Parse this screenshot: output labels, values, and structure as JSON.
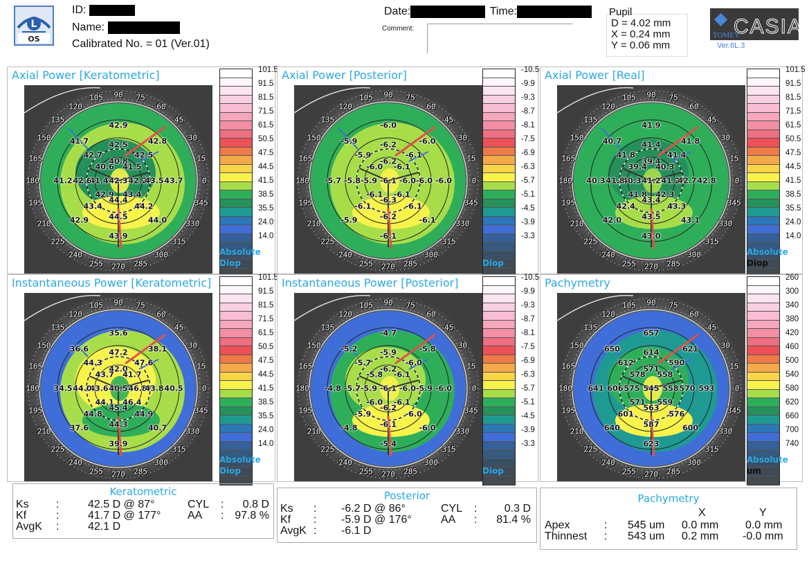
{
  "header": {
    "eye_badge": {
      "letter": "L",
      "label": "OS"
    },
    "id_label": "ID:",
    "name_label": "Name:",
    "calibration": "Calibrated No. = 01 (Ver.01)",
    "date_label": "Date:",
    "time_label": "Time:",
    "comment_label": "Comment:",
    "comment_value": "",
    "pupil": {
      "title": "Pupil",
      "d": "D = 4.02 mm",
      "x": "X = 0.24 mm",
      "y": "Y = 0.06 mm"
    },
    "brand": {
      "company": "TOMEY",
      "product": "CASIA",
      "version": "Ver.6L.3"
    }
  },
  "angle_labels": [
    "0",
    "15",
    "30",
    "45",
    "60",
    "75",
    "90",
    "105",
    "120",
    "135",
    "150",
    "165",
    "180",
    "195",
    "210",
    "225",
    "240",
    "255",
    "270",
    "285",
    "300",
    "315",
    "330",
    "345"
  ],
  "scales": {
    "diop_abs": {
      "ticks": [
        "101.5",
        "91.5",
        "81.5",
        "71.5",
        "61.5",
        "50.5",
        "47.5",
        "44.5",
        "41.5",
        "38.5",
        "35.5",
        "24.0",
        "14.0"
      ],
      "unit1": "Absolute",
      "unit2": "Diop"
    },
    "diop_post": {
      "ticks": [
        "-10.5",
        "-9.9",
        "-9.3",
        "-8.7",
        "-8.1",
        "-7.5",
        "-6.9",
        "-6.3",
        "-5.7",
        "-5.1",
        "-4.5",
        "-3.9",
        "-3.3"
      ],
      "unit1": "",
      "unit2": "Diop"
    },
    "pachy": {
      "ticks": [
        "260",
        "300",
        "340",
        "380",
        "420",
        "460",
        "500",
        "540",
        "580",
        "620",
        "660",
        "700",
        "740"
      ],
      "unit1": "Absolute",
      "unit2": "um"
    },
    "colors": [
      "#ffffff",
      "#fdf6fa",
      "#fbe3ef",
      "#f9cfe2",
      "#f8bcd3",
      "#f6a6bd",
      "#f38ea4",
      "#ef6f80",
      "#ee5058",
      "#ef7a48",
      "#f5a94a",
      "#f8d448",
      "#f7f34a",
      "#a8dd4a",
      "#2fae5a",
      "#26905a",
      "#1f9a93",
      "#2b77b7",
      "#3f6ed8",
      "#35609a",
      "#355a80",
      "#3a4e64",
      "#3e4a56",
      "#434a50"
    ]
  },
  "panels": [
    {
      "id": "axial-keratometric",
      "title": "Axial Power [Keratometric]",
      "scale": "diop_abs",
      "palette": {
        "outer": "#2fae5a",
        "mid": "#a8dd4a",
        "inner": "#26905a",
        "hot": "#f7f34a",
        "accent": "#2fae5a"
      },
      "values": {
        "ring3": [
          "42.9",
          "41.7",
          "41.2",
          "42.9",
          "43.9",
          "44.0",
          "43.7",
          "42.8"
        ],
        "ring2": [
          "42.5",
          "42.7",
          "42.6",
          "43.4",
          "44.5",
          "44.2",
          "43.5",
          "42.5"
        ],
        "ring1": [
          "40.8",
          "40.6",
          "41.4",
          "42.9",
          "44.4",
          "43.4",
          "42.2",
          "41.5"
        ],
        "center": "42.3"
      }
    },
    {
      "id": "axial-posterior",
      "title": "Axial Power [Posterior]",
      "scale": "diop_post",
      "palette": {
        "outer": "#2fae5a",
        "mid": "#a8dd4a",
        "inner": "#a8dd4a",
        "hot": "#f7f34a",
        "accent": "#1f9a93"
      },
      "values": {
        "ring3": [
          "-6.0",
          "-5.9",
          "-5.7",
          "-5.9",
          "-6.1",
          "-6.1",
          "-6.0",
          "-6.0"
        ],
        "ring2": [
          "-6.2",
          "-5.9",
          "-5.8",
          "-6.1",
          "-6.2",
          "-6.1",
          "-6.0",
          "-6.1"
        ],
        "ring1": [
          "-6.2",
          "-6.0",
          "-5.9",
          "-6.1",
          "-6.3",
          "-6.1",
          "-6.0",
          "-6.1"
        ],
        "center": "-6.1"
      }
    },
    {
      "id": "axial-real",
      "title": "Axial Power [Real]",
      "scale": "diop_abs",
      "palette": {
        "outer": "#2fae5a",
        "mid": "#2fae5a",
        "inner": "#26905a",
        "hot": "#a8dd4a",
        "accent": "#1f9a93"
      },
      "values": {
        "ring3": [
          "41.9",
          "40.7",
          "40.3",
          "42.0",
          "43.0",
          "43.1",
          "42.8",
          "41.8"
        ],
        "ring2": [
          "41.4",
          "41.8",
          "41.8",
          "42.4",
          "43.5",
          "43.3",
          "42.7",
          "41.4"
        ],
        "ring1": [
          "39.4",
          "39.4",
          "40.3",
          "41.8",
          "43.4",
          "42.3",
          "41.2",
          "40.3"
        ],
        "center": "41.2"
      }
    },
    {
      "id": "instantaneous-keratometric",
      "title": "Instantaneous Power [Keratometric]",
      "scale": "diop_abs",
      "palette": {
        "outer": "#3f6ed8",
        "mid": "#a8dd4a",
        "inner": "#f7f34a",
        "hot": "#2fae5a",
        "accent": "#f5a94a"
      },
      "values": {
        "ring3": [
          "35.6",
          "36.6",
          "34.5",
          "37.6",
          "39.9",
          "40.7",
          "40.5",
          "38.1"
        ],
        "ring2": [
          "47.2",
          "44.3",
          "44.0",
          "44.8",
          "44.3",
          "44.9",
          "43.8",
          "47.6"
        ],
        "ring1": [
          "42.0",
          "43.7",
          "43.6",
          "44.1",
          "45.4",
          "46.4",
          "46.8",
          "41.7"
        ],
        "center": "40.5"
      }
    },
    {
      "id": "instantaneous-posterior",
      "title": "Instantaneous Power [Posterior]",
      "scale": "diop_post",
      "palette": {
        "outer": "#3f6ed8",
        "mid": "#2fae5a",
        "inner": "#a8dd4a",
        "hot": "#f7f34a",
        "accent": "#1f9a93"
      },
      "values": {
        "ring3": [
          "-4.7",
          "-5.2",
          "-4.8",
          "-4.8",
          "-5.4",
          "-6.0",
          "-6.0",
          "-5.8"
        ],
        "ring2": [
          "-5.9",
          "-5.7",
          "-5.7",
          "-5.9",
          "-6.1",
          "-6.0",
          "-5.9",
          "-6.0"
        ],
        "ring1": [
          "-6.2",
          "-5.8",
          "-5.9",
          "-6.0",
          "-6.2",
          "-6.1",
          "-6.0",
          "-6.1"
        ],
        "center": "-6.1"
      }
    },
    {
      "id": "pachymetry",
      "title": "Pachymetry",
      "scale": "pachy",
      "palette": {
        "outer": "#3f6ed8",
        "mid": "#1f9a93",
        "inner": "#2fae5a",
        "hot": "#f7f34a",
        "accent": "#a8dd4a"
      },
      "values": {
        "ring3": [
          "657",
          "650",
          "641",
          "640",
          "623",
          "600",
          "593",
          "621"
        ],
        "ring2": [
          "614",
          "612",
          "606",
          "601",
          "587",
          "576",
          "570",
          "590"
        ],
        "ring1": [
          "571",
          "578",
          "575",
          "571",
          "563",
          "559",
          "558",
          "558"
        ],
        "center": "545"
      }
    }
  ],
  "summaries": {
    "keratometric": {
      "title": "Keratometric",
      "rows": [
        {
          "label": "Ks",
          "sep": ":",
          "value": "42.5 D @ 87°",
          "label2": "CYL",
          "sep2": ":",
          "value2": "0.8 D"
        },
        {
          "label": "Kf",
          "sep": ":",
          "value": "41.7 D @ 177°",
          "label2": "AA",
          "sep2": ":",
          "value2": "97.8 %"
        },
        {
          "label": "AvgK",
          "sep": ":",
          "value": "42.1 D",
          "label2": "",
          "sep2": "",
          "value2": ""
        }
      ]
    },
    "posterior": {
      "title": "Posterior",
      "rows": [
        {
          "label": "Ks",
          "sep": ":",
          "value": "-6.2 D @ 86°",
          "label2": "CYL",
          "sep2": ":",
          "value2": "0.3 D"
        },
        {
          "label": "Kf",
          "sep": ":",
          "value": "-5.9 D @ 176°",
          "label2": "AA",
          "sep2": ":",
          "value2": "81.4 %"
        },
        {
          "label": "AvgK",
          "sep": ":",
          "value": "-6.1 D",
          "label2": "",
          "sep2": "",
          "value2": ""
        }
      ]
    },
    "pachymetry": {
      "title": "Pachymetry",
      "col_x": "X",
      "col_y": "Y",
      "rows": [
        {
          "label": "Apex",
          "sep": ":",
          "value": "545 um",
          "x": "0.0 mm",
          "y": "0.0 mm"
        },
        {
          "label": "Thinnest",
          "sep": ":",
          "value": "543 um",
          "x": "0.2 mm",
          "y": "-0.0 mm"
        }
      ]
    }
  }
}
